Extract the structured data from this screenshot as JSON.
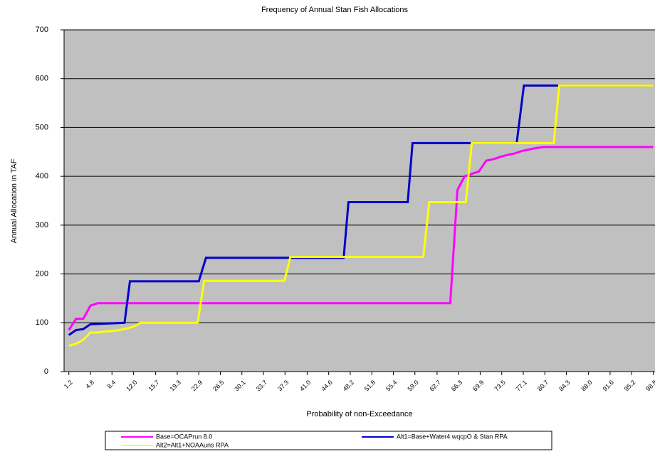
{
  "chart_data": {
    "type": "line",
    "title": "Frequency of Annual  Stan Fish Allocations",
    "x_label": "Probability of non-Exceedance",
    "y_label": "Annual Allocation in TAF",
    "xlim": [
      0.4,
      99.1
    ],
    "ylim": [
      0,
      700
    ],
    "yticks": [
      0,
      100,
      200,
      300,
      400,
      500,
      600,
      700
    ],
    "xticks": [
      1.2,
      4.8,
      8.4,
      {
        "value": 12,
        "label": "12.0"
      },
      15.7,
      19.3,
      22.9,
      26.5,
      30.1,
      33.7,
      37.3,
      {
        "value": 41,
        "label": "41.0"
      },
      44.6,
      48.2,
      51.8,
      55.4,
      {
        "value": 59,
        "label": "59.0"
      },
      62.7,
      66.3,
      69.9,
      73.5,
      77.1,
      80.7,
      84.3,
      {
        "value": 88,
        "label": "88.0"
      },
      91.6,
      95.2,
      98.8
    ],
    "grid": true,
    "background": "#c0c0c0",
    "series": [
      {
        "name": "Base=OCAPrun 8.0",
        "color": "#ff00ff",
        "x": [
          1.2,
          2.4,
          3.6,
          4.8,
          6.0,
          64.9,
          66.1,
          67.3,
          68.5,
          69.7,
          70.9,
          72.1,
          73.3,
          74.5,
          75.7,
          76.9,
          78.1,
          79.3,
          80.5,
          98.8
        ],
        "values": [
          85,
          108,
          108,
          135,
          140,
          140,
          372,
          400,
          405,
          410,
          432,
          435,
          440,
          444,
          447,
          452,
          455,
          458,
          460,
          460
        ]
      },
      {
        "name": "Alt1=Base+Water4 wqcpO & Stan RPA",
        "color": "#0000cc",
        "x": [
          1.2,
          2.4,
          3.6,
          4.8,
          10.5,
          11.4,
          22.9,
          24.1,
          47.1,
          47.9,
          57.8,
          58.6,
          76.0,
          77.2,
          98.8
        ],
        "values": [
          75,
          85,
          87,
          97,
          100,
          185,
          185,
          233,
          233,
          347,
          347,
          468,
          468,
          586,
          586
        ]
      },
      {
        "name": "Alt2=Alt1+NOAAuns RPA",
        "color": "#ffff00",
        "x": [
          1.2,
          2.4,
          3.6,
          4.8,
          6.0,
          7.2,
          8.4,
          9.6,
          10.8,
          12.0,
          13.2,
          22.7,
          23.8,
          37.2,
          38.2,
          60.4,
          61.4,
          67.5,
          68.5,
          82.2,
          83.1,
          98.8
        ],
        "values": [
          53,
          57,
          65,
          80,
          80,
          82,
          83,
          85,
          88,
          92,
          100,
          100,
          186,
          186,
          235,
          235,
          347,
          347,
          468,
          468,
          586,
          586
        ]
      }
    ]
  }
}
